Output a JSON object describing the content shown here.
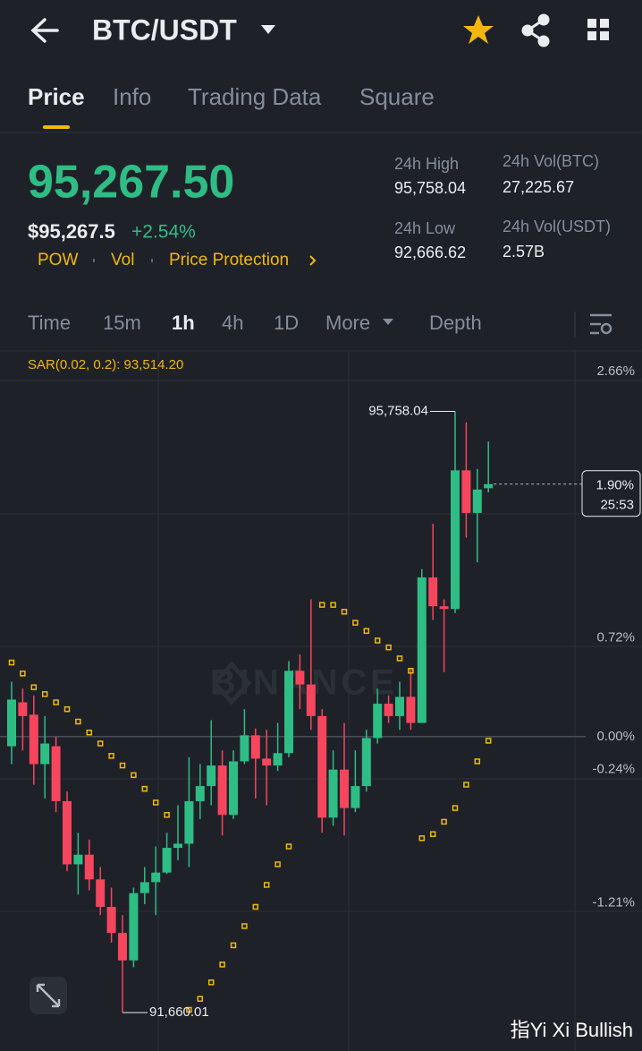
{
  "header": {
    "pair": "BTC/USDT"
  },
  "tabs": [
    "Price",
    "Info",
    "Trading Data",
    "Square"
  ],
  "ticker": {
    "last_price": "95,267.50",
    "usd_price": "$95,267.5",
    "change": "+2.54%",
    "tags": [
      "POW",
      "Vol",
      "Price Protection"
    ],
    "stats": [
      {
        "label": "24h High",
        "value": "95,758.04"
      },
      {
        "label": "24h Low",
        "value": "92,666.62"
      },
      {
        "label": "24h Vol(BTC)",
        "value": "27,225.67"
      },
      {
        "label": "24h Vol(USDT)",
        "value": "2.57B"
      }
    ]
  },
  "intervals": [
    "Time",
    "15m",
    "1h",
    "4h",
    "1D",
    "More",
    "Depth"
  ],
  "watermark": "BINANCE",
  "credit": "指Yi Xi Bullish",
  "chart_data": {
    "type": "candlestick",
    "indicator_label": "SAR(0.02, 0.2): 93,514.20",
    "ylim": [
      -2.29,
      2.81
    ],
    "yticks": [
      {
        "value": 2.66,
        "label": "2.66%"
      },
      {
        "value": 0.72,
        "label": "0.72%"
      },
      {
        "value": 0,
        "label": "0.00%"
      },
      {
        "value": -0.24,
        "label": "-0.24%"
      },
      {
        "value": -1.21,
        "label": "-1.21%"
      }
    ],
    "up_color": "#2ebd85",
    "down_color": "#f6465d",
    "sar_color": "#f0b90b",
    "open": [
      -0.07,
      0.25,
      0.16,
      -0.2,
      -0.07,
      -0.47,
      -0.93,
      -0.86,
      -1.04,
      -1.24,
      -1.43,
      -1.63,
      -1.14,
      -1.06,
      -0.99,
      -0.81,
      -0.78,
      -0.47,
      -0.36,
      -0.21,
      -0.57,
      -0.18,
      0.01,
      -0.16,
      -0.21,
      -0.12,
      0.48,
      0.38,
      0.15,
      -0.59,
      -0.24,
      -0.52,
      -0.36,
      -0.01,
      0.24,
      0.15,
      0.29,
      0.1,
      1.16,
      0.95,
      0.93,
      1.94,
      1.63,
      1.81
    ],
    "high": [
      0.4,
      0.35,
      0.3,
      0.15,
      0,
      -0.4,
      -0.7,
      -0.75,
      -0.95,
      -1.1,
      -1.3,
      -1.1,
      -0.95,
      -0.8,
      -0.7,
      -0.5,
      -0.15,
      -0.2,
      0.12,
      -0.1,
      -0.1,
      0.2,
      0.06,
      0.05,
      0.1,
      0.55,
      0.6,
      1,
      0.2,
      -0.1,
      0.1,
      -0.1,
      0.05,
      0.35,
      0.3,
      0.4,
      0.5,
      1.22,
      1.55,
      1,
      2.37,
      2.29,
      1.95,
      2.15
    ],
    "low": [
      -0.2,
      -0.1,
      -0.35,
      -0.45,
      -0.55,
      -0.98,
      -1.15,
      -1.12,
      -1.3,
      -1.5,
      -2.01,
      -1.68,
      -1.22,
      -1.3,
      -1,
      -0.9,
      -0.95,
      -0.6,
      -0.5,
      -0.72,
      -0.6,
      -0.2,
      -0.45,
      -0.5,
      -0.25,
      -0.15,
      0.2,
      0.05,
      -0.7,
      -0.65,
      -0.72,
      -0.55,
      -0.4,
      -0.05,
      0.1,
      0.05,
      0.05,
      0.1,
      0.85,
      0.47,
      0.9,
      1.45,
      1.27,
      1.78
    ],
    "close": [
      0.27,
      0.15,
      -0.2,
      -0.05,
      -0.47,
      -0.93,
      -0.86,
      -1.04,
      -1.24,
      -1.43,
      -1.63,
      -1.14,
      -1.06,
      -0.99,
      -0.81,
      -0.78,
      -0.47,
      -0.36,
      -0.21,
      -0.57,
      -0.18,
      0.01,
      -0.16,
      -0.21,
      -0.12,
      0.48,
      0.38,
      0.15,
      -0.59,
      -0.24,
      -0.52,
      -0.36,
      -0.01,
      0.24,
      0.15,
      0.29,
      0.1,
      1.16,
      0.95,
      0.93,
      1.94,
      1.63,
      1.8,
      1.84
    ],
    "sar": [
      0.54,
      0.46,
      0.36,
      0.31,
      0.25,
      0.2,
      0.11,
      0.03,
      -0.05,
      -0.14,
      -0.21,
      -0.28,
      -0.38,
      -0.48,
      -0.57,
      null,
      -1.99,
      -1.91,
      -1.79,
      -1.66,
      -1.52,
      -1.38,
      -1.24,
      -1.08,
      -0.93,
      -0.8,
      null,
      null,
      0.96,
      0.96,
      0.91,
      0.83,
      0.77,
      0.7,
      0.65,
      0.57,
      0.48,
      -0.74,
      -0.71,
      -0.62,
      -0.52,
      -0.35,
      -0.18,
      -0.03
    ],
    "high_label": "95,758.04",
    "low_label": "91,660.01",
    "current_label": "1.90%",
    "countdown": "25:53"
  }
}
